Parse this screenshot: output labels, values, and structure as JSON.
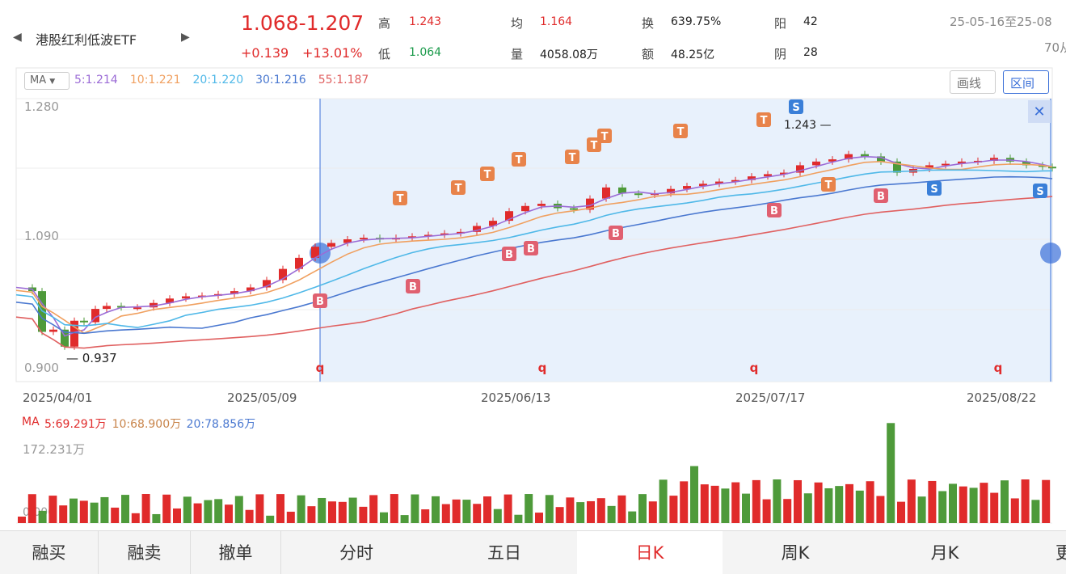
{
  "header": {
    "name": "港股红利低波ETF",
    "range": "1.068-1.207",
    "change": "+0.139",
    "change_pct": "+13.01%",
    "stats": {
      "high_label": "高",
      "high": "1.243",
      "low_label": "低",
      "low": "1.064",
      "avg_label": "均",
      "avg": "1.164",
      "vol_label": "量",
      "vol": "4058.08万",
      "turnover_label": "换",
      "turnover": "639.75%",
      "amount_label": "额",
      "amount": "48.25亿",
      "up_label": "阳",
      "up": "42",
      "down_label": "阴",
      "down": "28"
    },
    "date_range": "25-05-16至25-08",
    "days": "70从"
  },
  "toolbar": {
    "ma_select": "MA",
    "draw_button": "画线",
    "range_button": "区间"
  },
  "ma_legend": [
    {
      "label": "5:1.214",
      "color": "#9b6bd6"
    },
    {
      "label": "10:1.221",
      "color": "#f0a060"
    },
    {
      "label": "20:1.220",
      "color": "#4fb8e8"
    },
    {
      "label": "30:1.216",
      "color": "#4a78d0"
    },
    {
      "label": "55:1.187",
      "color": "#e06060"
    }
  ],
  "vol_legend": [
    {
      "label": "MA",
      "color": "#e02b2b"
    },
    {
      "label": "5:69.291万",
      "color": "#e02b2b"
    },
    {
      "label": "10:68.900万",
      "color": "#c8844a"
    },
    {
      "label": "20:78.856万",
      "color": "#4a78d0"
    }
  ],
  "chart_data": {
    "type": "candlestick",
    "y_axis_ticks": [
      "1.280",
      "1.090",
      "0.900"
    ],
    "x_axis_ticks": [
      "2025/04/01",
      "2025/05/09",
      "2025/06/13",
      "2025/07/17",
      "2025/08/22"
    ],
    "ylim": [
      0.9,
      1.28
    ],
    "price_labels": {
      "high": "1.243",
      "low": "0.937"
    },
    "volume_axis_top": "172.231万",
    "volume_axis_bottom": "0.000",
    "selection_start_marker": "q",
    "colors": {
      "up": "#e02b2b",
      "down": "#4e9a3a",
      "selection": "#e6effc"
    }
  },
  "tabs": [
    "融买",
    "融卖",
    "撤单",
    "分时",
    "五日",
    "日K",
    "周K",
    "月K",
    "更"
  ]
}
